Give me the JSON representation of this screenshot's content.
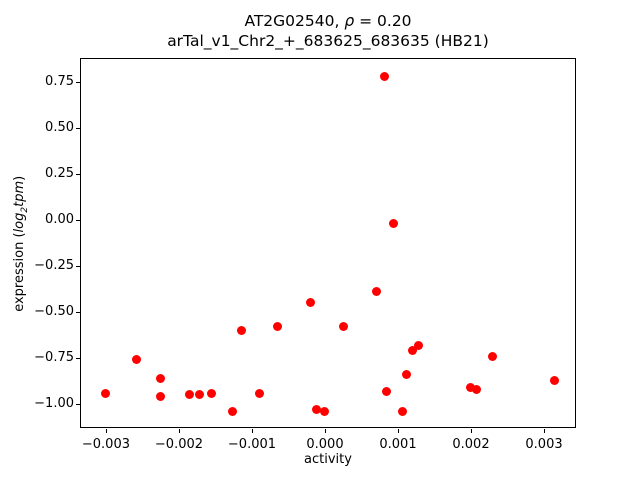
{
  "figure": {
    "title_line1": {
      "pre": "AT2G02540, ",
      "rho": "ρ",
      "post": " = 0.20"
    },
    "title_line2": "arTal_v1_Chr2_+_683625_683635 (HB21)",
    "xlabel": "activity",
    "ylabel": {
      "pre": "expression (",
      "log_word": "log",
      "log_sub": "2",
      "log_tail": "tpm",
      "post": ")"
    }
  },
  "chart_data": {
    "type": "scatter",
    "title": "AT2G02540, ρ = 0.20",
    "subtitle": "arTal_v1_Chr2_+_683625_683635 (HB21)",
    "xlabel": "activity",
    "ylabel": "expression (log2 tpm)",
    "legend": "none",
    "grid": false,
    "marker": "circle",
    "marker_color": "#ff0000",
    "rho": 0.2,
    "xlim": [
      -0.003342,
      0.003452
    ],
    "ylim": [
      -1.1353,
      0.8734
    ],
    "xticks": {
      "values": [
        -0.003,
        -0.002,
        -0.001,
        0.0,
        0.001,
        0.002,
        0.003
      ],
      "labels": [
        "−0.003",
        "−0.002",
        "−0.001",
        "0.000",
        "0.001",
        "0.002",
        "0.003"
      ]
    },
    "yticks": {
      "values": [
        0.75,
        0.5,
        0.25,
        0.0,
        -0.25,
        -0.5,
        -0.75,
        -1.0
      ],
      "labels": [
        "0.75",
        "0.50",
        "0.25",
        "0.00",
        "−0.25",
        "−0.50",
        "−0.75",
        "−1.00"
      ]
    },
    "points": [
      [
        0.00082,
        0.78
      ],
      [
        0.00094,
        -0.02
      ],
      [
        0.0007,
        -0.39
      ],
      [
        -0.0002,
        -0.45
      ],
      [
        0.00026,
        -0.58
      ],
      [
        -0.00065,
        -0.58
      ],
      [
        -0.00114,
        -0.6
      ],
      [
        0.00128,
        -0.68
      ],
      [
        0.0012,
        -0.71
      ],
      [
        0.0023,
        -0.74
      ],
      [
        -0.00258,
        -0.76
      ],
      [
        0.00112,
        -0.84
      ],
      [
        -0.00225,
        -0.86
      ],
      [
        0.00314,
        -0.87
      ],
      [
        0.002,
        -0.91
      ],
      [
        0.00208,
        -0.92
      ],
      [
        0.00084,
        -0.93
      ],
      [
        -0.00301,
        -0.94
      ],
      [
        -0.00156,
        -0.94
      ],
      [
        -0.0009,
        -0.94
      ],
      [
        -0.00186,
        -0.95
      ],
      [
        -0.00172,
        -0.95
      ],
      [
        -0.00225,
        -0.96
      ],
      [
        -0.00127,
        -1.04
      ],
      [
        -0.00012,
        -1.03
      ],
      [
        0.0,
        -1.04
      ],
      [
        0.00106,
        -1.04
      ]
    ]
  }
}
